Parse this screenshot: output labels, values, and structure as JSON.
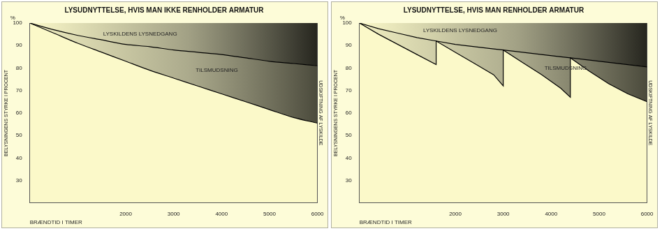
{
  "chart_data": [
    {
      "type": "line",
      "title": "LYSUDNYTTELSE, HVIS MAN IKKE RENHOLDER ARMATUR",
      "x_label": "BRÆNDTID I TIMER",
      "y_label": "BELYSNINGENS STYRKE I PROCENT",
      "y_unit": "%",
      "right_label": "UDSKIFTNING AF LYSKILDE",
      "x": [
        0,
        500,
        1000,
        1500,
        2000,
        2500,
        3000,
        3500,
        4000,
        4500,
        5000,
        5500,
        6000
      ],
      "series": [
        {
          "color": "#000000",
          "values": [
            100,
            97,
            94.5,
            92.5,
            90.5,
            89.5,
            88,
            87,
            86,
            84.5,
            83,
            82,
            81
          ]
        },
        {
          "color": "#000000",
          "values": [
            100,
            95.5,
            91,
            87,
            83,
            79,
            75.5,
            72,
            68.5,
            65,
            61.5,
            58,
            55.5
          ]
        }
      ],
      "annotations": [
        {
          "text": "LYSKILDENS LYSNEDGANG",
          "x": 2300,
          "y": 95
        },
        {
          "text": "TILSMUDSNING",
          "x": 3900,
          "y": 79
        }
      ],
      "xlim": [
        0,
        6000
      ],
      "xticks": [
        2000,
        3000,
        4000,
        5000,
        6000
      ],
      "ylim": [
        20,
        100
      ],
      "yticks": [
        30,
        40,
        50,
        60,
        70,
        80,
        90,
        100
      ],
      "grid": false
    },
    {
      "type": "line",
      "title": "LYSUDNYTTELSE, HVIS MAN RENHOLDER ARMATUR",
      "x_label": "BRÆNDTID I TIMER",
      "y_label": "BELYSNINGENS STYRKE I PROCENT",
      "y_unit": "%",
      "right_label": "UDSKIFTNING AF LYSKILDE",
      "x": [
        0,
        400,
        800,
        1200,
        1600,
        1600,
        2000,
        2400,
        2800,
        3000,
        3000,
        3400,
        3800,
        4200,
        4400,
        4400,
        4800,
        5200,
        5600,
        6000
      ],
      "series": [
        {
          "color": "#000000",
          "values": [
            100,
            97.5,
            95.5,
            93.5,
            92,
            92,
            90.5,
            89.5,
            88.5,
            88,
            88,
            87,
            86,
            85,
            84.5,
            84.5,
            83.5,
            82.5,
            81.5,
            80.5
          ]
        },
        {
          "color": "#000000",
          "values": [
            100,
            95,
            90.5,
            86,
            81.5,
            92,
            87,
            82,
            77,
            72,
            88,
            82.5,
            77,
            71,
            67,
            84.5,
            78.5,
            73,
            68.5,
            65
          ]
        }
      ],
      "annotations": [
        {
          "text": "LYSKILDENS LYSNEDGANG",
          "x": 2100,
          "y": 96.5
        },
        {
          "text": "TILSMUDSNING",
          "x": 4300,
          "y": 80
        }
      ],
      "xlim": [
        0,
        6000
      ],
      "xticks": [
        2000,
        3000,
        4000,
        5000,
        6000
      ],
      "ylim": [
        20,
        100
      ],
      "yticks": [
        30,
        40,
        50,
        60,
        70,
        80,
        90,
        100
      ],
      "grid": false
    }
  ]
}
